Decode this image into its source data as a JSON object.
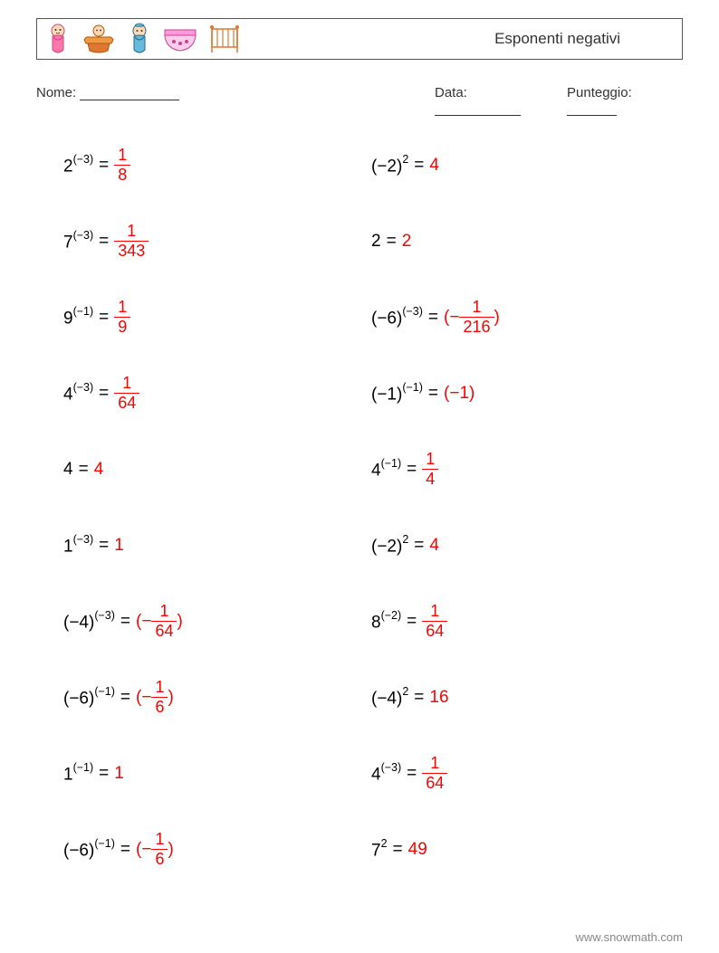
{
  "title": "Esponenti negativi",
  "labels": {
    "name": "Nome:",
    "date": "Data:",
    "score": "Punteggio:"
  },
  "colors": {
    "answer": "#ff0000",
    "text": "#000000",
    "border": "#555555"
  },
  "columns": {
    "left": [
      {
        "base": "2",
        "exp": "(−3)",
        "ans_type": "frac",
        "num": "1",
        "den": "8"
      },
      {
        "base": "7",
        "exp": "(−3)",
        "ans_type": "frac",
        "num": "1",
        "den": "343"
      },
      {
        "base": "9",
        "exp": "(−1)",
        "ans_type": "frac",
        "num": "1",
        "den": "9"
      },
      {
        "base": "4",
        "exp": "(−3)",
        "ans_type": "frac",
        "num": "1",
        "den": "64"
      },
      {
        "base": "4",
        "exp": "",
        "ans_type": "plain",
        "val": "4"
      },
      {
        "base": "1",
        "exp": "(−3)",
        "ans_type": "plain",
        "val": "1"
      },
      {
        "base": "(−4)",
        "exp": "(−3)",
        "ans_type": "negparenfrac",
        "num": "1",
        "den": "64"
      },
      {
        "base": "(−6)",
        "exp": "(−1)",
        "ans_type": "negparenfrac",
        "num": "1",
        "den": "6"
      },
      {
        "base": "1",
        "exp": "(−1)",
        "ans_type": "plain",
        "val": "1"
      },
      {
        "base": "(−6)",
        "exp": "(−1)",
        "ans_type": "negparenfrac",
        "num": "1",
        "den": "6"
      }
    ],
    "right": [
      {
        "base": "(−2)",
        "exp": "2",
        "ans_type": "plain",
        "val": "4"
      },
      {
        "base": "2",
        "exp": "",
        "ans_type": "plain",
        "val": "2"
      },
      {
        "base": "(−6)",
        "exp": "(−3)",
        "ans_type": "negparenfrac",
        "num": "1",
        "den": "216"
      },
      {
        "base": "(−1)",
        "exp": "(−1)",
        "ans_type": "paren",
        "val": "(−1)"
      },
      {
        "base": "4",
        "exp": "(−1)",
        "ans_type": "frac",
        "num": "1",
        "den": "4"
      },
      {
        "base": "(−2)",
        "exp": "2",
        "ans_type": "plain",
        "val": "4"
      },
      {
        "base": "8",
        "exp": "(−2)",
        "ans_type": "frac",
        "num": "1",
        "den": "64"
      },
      {
        "base": "(−4)",
        "exp": "2",
        "ans_type": "plain",
        "val": "16"
      },
      {
        "base": "4",
        "exp": "(−3)",
        "ans_type": "frac",
        "num": "1",
        "den": "64"
      },
      {
        "base": "7",
        "exp": "2",
        "ans_type": "plain",
        "val": "49"
      }
    ]
  },
  "watermark": "www.snowmath.com",
  "icons": [
    "baby-swaddle",
    "baby-pot",
    "baby-swaddle-blue",
    "diaper",
    "crib"
  ]
}
